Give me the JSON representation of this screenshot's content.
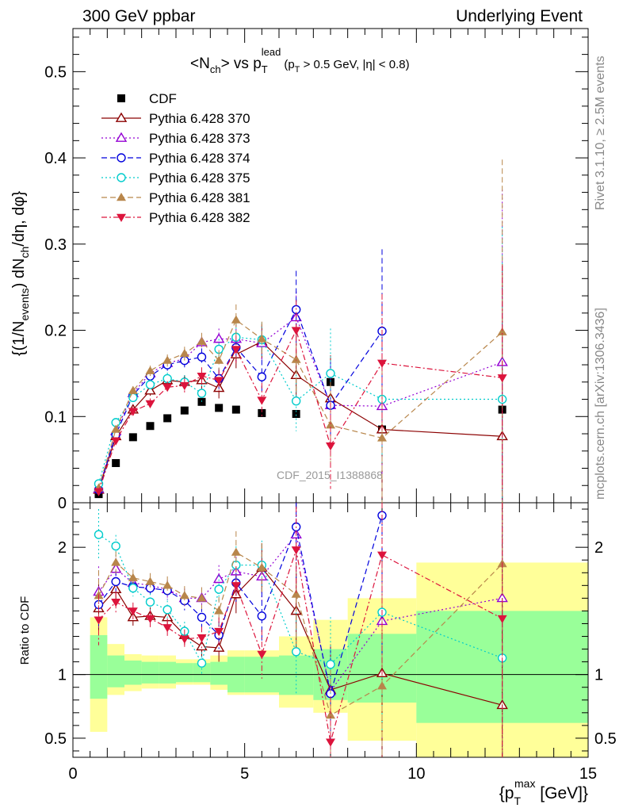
{
  "header": {
    "left": "300 GeV ppbar",
    "right": "Underlying Event"
  },
  "side_labels": {
    "rivet": "Rivet 3.1.10, ≥ 2.5M events",
    "mcplots": "mcplots.cern.ch [arXiv:1306.3436]"
  },
  "watermark": "CDF_2015_I1388868",
  "colors": {
    "cdf": "#000000",
    "p370": "#8b0000",
    "p373": "#9400d3",
    "p374": "#0000dd",
    "p375": "#00cccc",
    "p381": "#b8864b",
    "p382": "#dc143c",
    "band_inner": "#99ff99",
    "band_outer": "#ffff99"
  },
  "chart_data": [
    {
      "type": "scatter",
      "title_parts": {
        "main": "<N",
        "main_sub": "ch",
        "vs": "> vs p",
        "vs_sub": "T",
        "vs_sup": "lead",
        "cut1": "(p",
        "cut1_sub": "T",
        "cut2": " > 0.5 GeV, |η| < 0.8)"
      },
      "ylabel": "{(1/N_events) dN_ch/dη, dφ}",
      "ylabel_parts": {
        "a": "{(1/N",
        "a_sub": "events",
        "b": ") dN",
        "b_sub": "ch",
        "c": "/dη, dφ}"
      },
      "xlim": [
        0,
        15
      ],
      "ylim": [
        0,
        0.55
      ],
      "yticks": [
        "0",
        "0.1",
        "0.2",
        "0.3",
        "0.4",
        "0.5"
      ],
      "x": [
        0.75,
        1.25,
        1.75,
        2.25,
        2.75,
        3.25,
        3.75,
        4.25,
        4.75,
        5.5,
        6.5,
        7.5,
        9,
        12.5
      ],
      "series": [
        {
          "name": "CDF",
          "marker": "square",
          "values": [
            0.01,
            0.046,
            0.076,
            0.089,
            0.098,
            0.107,
            0.117,
            0.11,
            0.108,
            0.104,
            0.103,
            0.14,
            0.085,
            0.108
          ],
          "err": [
            0.001,
            0.002,
            0.002,
            0.002,
            0.002,
            0.002,
            0.003,
            0.003,
            0.003,
            0.003,
            0.004,
            0.008,
            0.006,
            0.01
          ]
        },
        {
          "name": "Pythia 6.428 370",
          "marker": "triangle-open",
          "line": "solid",
          "values": [
            0.015,
            0.077,
            0.108,
            0.13,
            0.142,
            0.14,
            0.142,
            0.133,
            0.172,
            0.187,
            0.148,
            0.121,
            0.085,
            0.077
          ],
          "err": [
            0.002,
            0.004,
            0.005,
            0.006,
            0.007,
            0.008,
            0.01,
            0.012,
            0.016,
            0.02,
            0.03,
            0.05,
            0.08,
            0.2
          ]
        },
        {
          "name": "Pythia 6.428 373",
          "marker": "triangle-open",
          "line": "dotted",
          "values": [
            0.016,
            0.083,
            0.127,
            0.15,
            0.162,
            0.167,
            0.186,
            0.19,
            0.19,
            0.185,
            0.215,
            0.113,
            0.112,
            0.163
          ],
          "err": [
            0.002,
            0.004,
            0.005,
            0.006,
            0.007,
            0.008,
            0.01,
            0.012,
            0.016,
            0.02,
            0.03,
            0.05,
            0.08,
            0.2
          ]
        },
        {
          "name": "Pythia 6.428 374",
          "marker": "circle-open",
          "line": "dashed",
          "values": [
            0.015,
            0.079,
            0.125,
            0.147,
            0.16,
            0.165,
            0.169,
            0.144,
            0.18,
            0.146,
            0.224,
            0.113,
            0.199,
            0.0
          ],
          "err": [
            0.002,
            0.004,
            0.005,
            0.006,
            0.007,
            0.008,
            0.01,
            0.012,
            0.016,
            0.02,
            0.045,
            0.05,
            0.095,
            0.0
          ]
        },
        {
          "name": "Pythia 6.428 375",
          "marker": "circle-open",
          "line": "dotted",
          "values": [
            0.022,
            0.093,
            0.122,
            0.137,
            0.144,
            0.14,
            0.127,
            0.178,
            0.192,
            0.189,
            0.118,
            0.15,
            0.12,
            0.12
          ],
          "err": [
            0.002,
            0.004,
            0.005,
            0.006,
            0.007,
            0.008,
            0.01,
            0.012,
            0.016,
            0.02,
            0.035,
            0.052,
            0.08,
            0.2
          ]
        },
        {
          "name": "Pythia 6.428 381",
          "marker": "triangle-filled",
          "line": "dashed",
          "values": [
            0.017,
            0.085,
            0.13,
            0.153,
            0.165,
            0.173,
            0.187,
            0.165,
            0.212,
            0.19,
            0.166,
            0.09,
            0.075,
            0.198
          ],
          "err": [
            0.002,
            0.004,
            0.005,
            0.006,
            0.007,
            0.008,
            0.01,
            0.012,
            0.018,
            0.02,
            0.04,
            0.05,
            0.08,
            0.2
          ]
        },
        {
          "name": "Pythia 6.428 382",
          "marker": "triangle-down-filled",
          "line": "dashdot",
          "values": [
            0.013,
            0.072,
            0.106,
            0.115,
            0.134,
            0.136,
            0.147,
            0.142,
            0.178,
            0.119,
            0.2,
            0.066,
            0.162,
            0.145
          ],
          "err": [
            0.002,
            0.004,
            0.005,
            0.006,
            0.007,
            0.008,
            0.01,
            0.012,
            0.016,
            0.02,
            0.035,
            0.05,
            0.08,
            0.13
          ]
        }
      ],
      "legend": "top-left"
    },
    {
      "type": "scatter",
      "ylabel": "Ratio to CDF",
      "xlabel_parts": {
        "a": "{p",
        "a_sub": "T",
        "a_sup": "max",
        "b": " [GeV]}"
      },
      "xlim": [
        0,
        15
      ],
      "ylim": [
        0.35,
        2.35
      ],
      "xticks": [
        "0",
        "5",
        "10",
        "15"
      ],
      "yticks": [
        "0.5",
        "1",
        "2"
      ],
      "bin_edges": [
        0.5,
        1.0,
        1.5,
        2.0,
        2.5,
        3.0,
        3.5,
        4.0,
        4.5,
        5.0,
        6.0,
        7.0,
        8.0,
        10.0,
        15.0
      ],
      "band_inner": [
        [
          0.81,
          1.31
        ],
        [
          0.9,
          1.15
        ],
        [
          0.92,
          1.11
        ],
        [
          0.93,
          1.1
        ],
        [
          0.93,
          1.1
        ],
        [
          0.94,
          1.09
        ],
        [
          0.94,
          1.09
        ],
        [
          0.92,
          1.1
        ],
        [
          0.86,
          1.14
        ],
        [
          0.86,
          1.14
        ],
        [
          0.84,
          1.15
        ],
        [
          0.8,
          1.2
        ],
        [
          0.78,
          1.32
        ],
        [
          0.62,
          1.5
        ]
      ],
      "band_outer": [
        [
          0.55,
          1.45
        ],
        [
          0.84,
          1.24
        ],
        [
          0.87,
          1.16
        ],
        [
          0.89,
          1.15
        ],
        [
          0.89,
          1.15
        ],
        [
          0.92,
          1.12
        ],
        [
          0.92,
          1.12
        ],
        [
          0.88,
          1.15
        ],
        [
          0.84,
          1.19
        ],
        [
          0.84,
          1.19
        ],
        [
          0.74,
          1.3
        ],
        [
          0.7,
          1.43
        ],
        [
          0.48,
          1.6
        ],
        [
          0.35,
          1.88
        ]
      ],
      "series": [
        {
          "name": "Pythia 6.428 370",
          "values": [
            1.52,
            1.67,
            1.45,
            1.46,
            1.45,
            1.31,
            1.22,
            1.21,
            1.63,
            1.84,
            1.5,
            0.88,
            1.01,
            0.76
          ]
        },
        {
          "name": "Pythia 6.428 373",
          "values": [
            1.65,
            1.83,
            1.72,
            1.7,
            1.67,
            1.6,
            1.6,
            1.75,
            1.81,
            1.77,
            2.1,
            0.87,
            1.42,
            1.6
          ]
        },
        {
          "name": "Pythia 6.428 374",
          "values": [
            1.55,
            1.73,
            1.69,
            1.68,
            1.66,
            1.58,
            1.45,
            1.31,
            1.72,
            1.46,
            2.16,
            0.85,
            2.25,
            null
          ]
        },
        {
          "name": "Pythia 6.428 375",
          "values": [
            2.1,
            2.01,
            1.68,
            1.57,
            1.51,
            1.34,
            1.09,
            1.67,
            1.86,
            1.86,
            1.18,
            1.08,
            1.49,
            1.13
          ]
        },
        {
          "name": "Pythia 6.428 381",
          "values": [
            1.62,
            1.88,
            1.76,
            1.73,
            1.7,
            1.62,
            1.6,
            1.5,
            1.96,
            1.84,
            1.63,
            0.68,
            0.91,
            1.87
          ]
        },
        {
          "name": "Pythia 6.428 382",
          "values": [
            1.43,
            1.57,
            1.5,
            1.44,
            1.37,
            1.28,
            1.29,
            1.34,
            1.7,
            1.16,
            1.98,
            0.47,
            1.94,
            1.44
          ]
        }
      ]
    }
  ]
}
